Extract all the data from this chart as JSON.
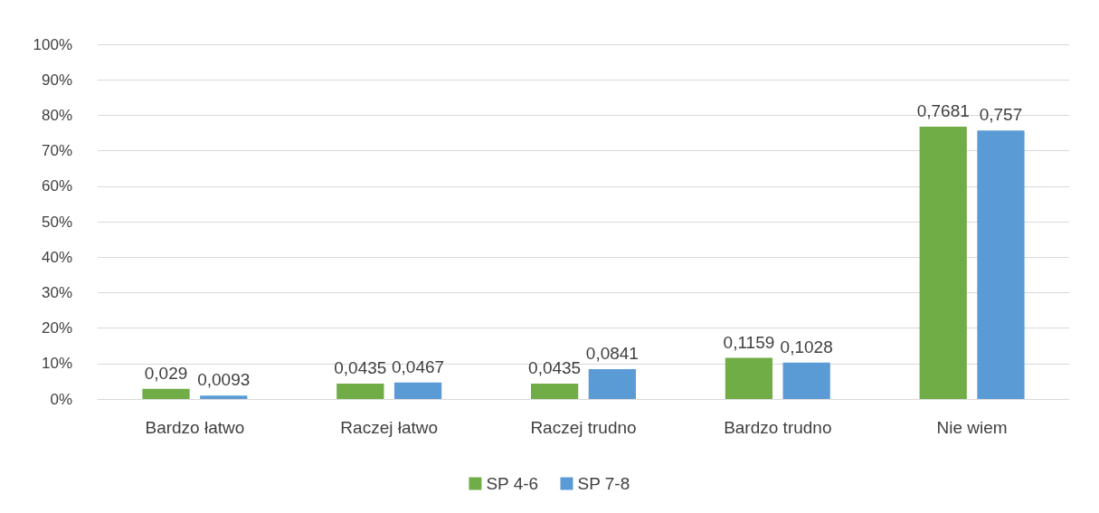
{
  "chart_data": {
    "type": "bar",
    "categories": [
      "Bardzo łatwo",
      "Raczej łatwo",
      "Raczej trudno",
      "Bardzo trudno",
      "Nie wiem"
    ],
    "series": [
      {
        "name": "SP 4-6",
        "color": "#70ad47",
        "values": [
          0.029,
          0.0435,
          0.0435,
          0.1159,
          0.7681
        ],
        "value_labels": [
          "0,029",
          "0,0435",
          "0,0435",
          "0,1159",
          "0,7681"
        ]
      },
      {
        "name": "SP 7-8",
        "color": "#5b9bd5",
        "values": [
          0.0093,
          0.0467,
          0.0841,
          0.1028,
          0.757
        ],
        "value_labels": [
          "0,0093",
          "0,0467",
          "0,0841",
          "0,1028",
          "0,757"
        ]
      }
    ],
    "ylim": [
      0,
      1
    ],
    "yticks": [
      {
        "value": 0,
        "label": "0%"
      },
      {
        "value": 0.1,
        "label": "10%"
      },
      {
        "value": 0.2,
        "label": "20%"
      },
      {
        "value": 0.3,
        "label": "30%"
      },
      {
        "value": 0.4,
        "label": "40%"
      },
      {
        "value": 0.5,
        "label": "50%"
      },
      {
        "value": 0.6,
        "label": "60%"
      },
      {
        "value": 0.7,
        "label": "70%"
      },
      {
        "value": 0.8,
        "label": "80%"
      },
      {
        "value": 0.9,
        "label": "90%"
      },
      {
        "value": 1,
        "label": "100%"
      }
    ],
    "grid": "y",
    "legend": "bottom"
  }
}
